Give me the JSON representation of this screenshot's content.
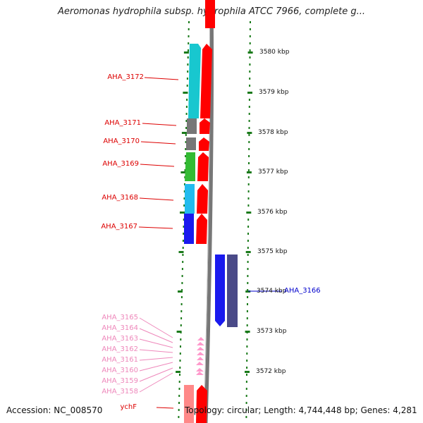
{
  "title": "Aeromonas hydrophila subsp. hydrophila ATCC 7966, complete g...",
  "footer": {
    "accession": "Accession: NC_008570",
    "topology": "Topology: circular; Length: 4,744,448 bp; Genes: 4,281"
  },
  "colors": {
    "red": "#ff0000",
    "cyan": "#18c7cf",
    "gray": "#777777",
    "green": "#33bb33",
    "sky": "#22bbee",
    "blue": "#1a1aee",
    "navy": "#4a4a88",
    "pink": "#ff99cc",
    "light_red": "#ff8888",
    "scale_green": "#1a7a1a"
  },
  "scale_labels": [
    "3580 kbp",
    "3579 kbp",
    "3578 kbp",
    "3577 kbp",
    "3576 kbp",
    "3575 kbp",
    "3574 kbp",
    "3573 kbp",
    "3572 kbp"
  ],
  "gene_labels": [
    {
      "text": "AHA_3172",
      "color": "#dd0000"
    },
    {
      "text": "AHA_3171",
      "color": "#dd0000"
    },
    {
      "text": "AHA_3170",
      "color": "#dd0000"
    },
    {
      "text": "AHA_3169",
      "color": "#dd0000"
    },
    {
      "text": "AHA_3168",
      "color": "#dd0000"
    },
    {
      "text": "AHA_3167",
      "color": "#dd0000"
    },
    {
      "text": "AHA_3166",
      "color": "#0000cc"
    },
    {
      "text": "AHA_3165",
      "color": "#ee88bb"
    },
    {
      "text": "AHA_3164",
      "color": "#ee88bb"
    },
    {
      "text": "AHA_3163",
      "color": "#ee88bb"
    },
    {
      "text": "AHA_3162",
      "color": "#ee88bb"
    },
    {
      "text": "AHA_3161",
      "color": "#ee88bb"
    },
    {
      "text": "AHA_3160",
      "color": "#ee88bb"
    },
    {
      "text": "AHA_3159",
      "color": "#ee88bb"
    },
    {
      "text": "AHA_3158",
      "color": "#ee88bb"
    },
    {
      "text": "ychF",
      "color": "#dd0000"
    }
  ]
}
